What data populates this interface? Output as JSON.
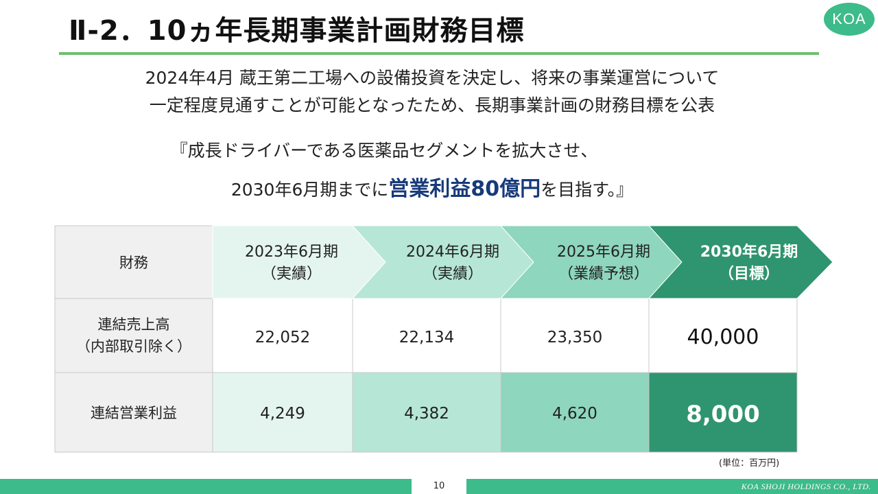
{
  "title": "Ⅱ-2．10ヵ年長期事業計画財務目標",
  "logo": "KOA",
  "intro": {
    "line1": "2024年4月 蔵王第二工場への設備投資を決定し、将来の事業運営について",
    "line2": "一定程度見通すことが可能となったため、長期事業計画の財務目標を公表"
  },
  "quote": {
    "line1": "『成長ドライバーである医薬品セグメントを拡大させ、",
    "line2_pre": "2030年6月期までに",
    "line2_highlight": "営業利益80億円",
    "line2_post": "を目指す。』"
  },
  "table": {
    "corner": "財務",
    "columns": [
      {
        "line1": "2023年6月期",
        "line2": "（実績）"
      },
      {
        "line1": "2024年6月期",
        "line2": "（実績）"
      },
      {
        "line1": "2025年6月期",
        "line2": "（業績予想）"
      },
      {
        "line1": "2030年6月期",
        "line2": "（目標）"
      }
    ],
    "rows": [
      {
        "label_line1": "連結売上高",
        "label_line2": "（内部取引除く）",
        "values": [
          "22,052",
          "22,134",
          "23,350",
          "40,000"
        ]
      },
      {
        "label_line1": "連結営業利益",
        "label_line2": "",
        "values": [
          "4,249",
          "4,382",
          "4,620",
          "8,000"
        ]
      }
    ],
    "unit": "(単位：百万円)"
  },
  "colors": {
    "col1": "#e4f5ef",
    "col2": "#b6e6d6",
    "col3": "#8ed6bd",
    "col4": "#2f9470",
    "label_bg": "#f0f0f0",
    "accent": "#3dbb8a"
  },
  "footer": {
    "page": "10",
    "company": "KOA SHOJI HOLDINGS CO., LTD."
  }
}
